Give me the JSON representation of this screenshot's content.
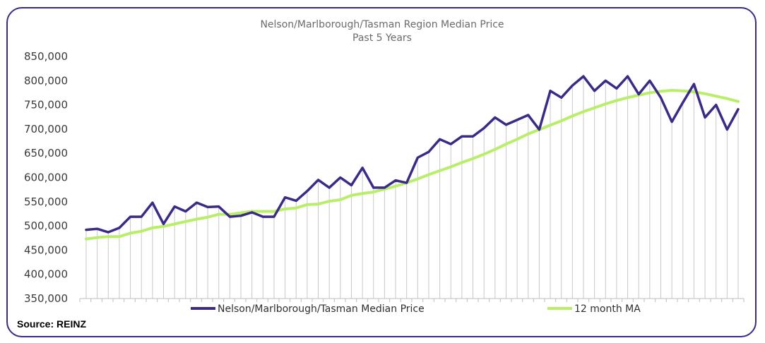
{
  "source_note": "Source: REINZ",
  "colors": {
    "median_line": "#3b2a86",
    "ma_line": "#b8ee6a",
    "drop_lines": "#c8c8c8",
    "axis": "#bdbdbd",
    "frame": "#3b2a86"
  },
  "chart_data": {
    "type": "line",
    "title": "Nelson/Marlborough/Tasman  Region Median Price",
    "subtitle": "Past 5 Years",
    "xlabel": "",
    "ylabel": "",
    "ylim": [
      350000,
      850000
    ],
    "y_ticks": [
      350000,
      400000,
      450000,
      500000,
      550000,
      600000,
      650000,
      700000,
      750000,
      800000,
      850000
    ],
    "y_tick_labels": [
      "350,000",
      "400,000",
      "450,000",
      "500,000",
      "550,000",
      "600,000",
      "650,000",
      "700,000",
      "750,000",
      "800,000",
      "850,000"
    ],
    "grid": false,
    "drop_lines": true,
    "legend": {
      "placement": "bottom"
    },
    "series": [
      {
        "name": "Nelson/Marlborough/Tasman Median Price",
        "color": "#3b2a86",
        "values": [
          492000,
          494000,
          487000,
          496000,
          519000,
          519000,
          548000,
          504000,
          540000,
          530000,
          548000,
          539000,
          540000,
          519000,
          521000,
          528000,
          519000,
          519000,
          559000,
          552000,
          572000,
          595000,
          579000,
          600000,
          584000,
          620000,
          579000,
          579000,
          594000,
          589000,
          641000,
          653000,
          679000,
          669000,
          685000,
          685000,
          702000,
          724000,
          709000,
          719000,
          729000,
          699000,
          779000,
          765000,
          790000,
          809000,
          779000,
          800000,
          784000,
          809000,
          772000,
          800000,
          765000,
          715000,
          755000,
          793000,
          724000,
          750000,
          699000,
          741000
        ]
      },
      {
        "name": "12 month MA",
        "color": "#b8ee6a",
        "values": [
          473000,
          476000,
          478000,
          478000,
          485000,
          489000,
          496000,
          499000,
          504000,
          509000,
          514000,
          518000,
          524000,
          524000,
          527000,
          530000,
          530000,
          530000,
          535000,
          537000,
          544000,
          545000,
          551000,
          554000,
          563000,
          567000,
          570000,
          576000,
          582000,
          589000,
          597000,
          606000,
          614000,
          622000,
          631000,
          639000,
          648000,
          658000,
          669000,
          679000,
          690000,
          699000,
          708000,
          717000,
          727000,
          736000,
          744000,
          752000,
          759000,
          765000,
          770000,
          775000,
          778000,
          780000,
          779000,
          777000,
          773000,
          768000,
          763000,
          757000
        ]
      }
    ]
  }
}
